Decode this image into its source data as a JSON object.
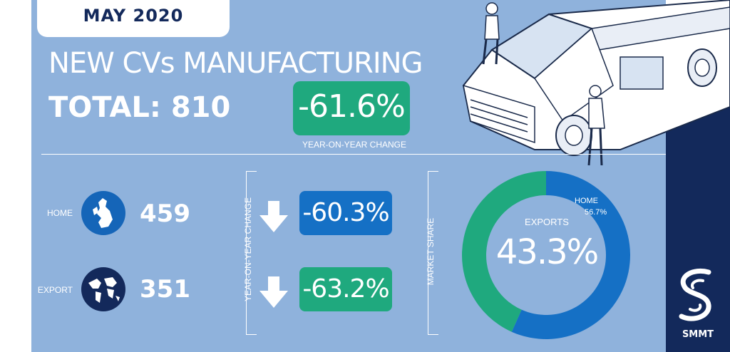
{
  "header": {
    "date": "MAY 2020",
    "title": "NEW CVs MANUFACTURING",
    "total": "TOTAL: 810",
    "total_change": "-61.6%",
    "total_change_caption": "YEAR-ON-YEAR CHANGE"
  },
  "rows": [
    {
      "label": "HOME",
      "value": "459",
      "change": "-60.3%",
      "icon": "uk-map-icon",
      "direction": "down"
    },
    {
      "label": "EXPORT",
      "value": "351",
      "change": "-63.2%",
      "icon": "world-globe-icon",
      "direction": "down"
    }
  ],
  "yoy_vertical_label": "YEAR-ON-YEAR CHANGE",
  "market_share": {
    "vertical_label": "MARKET SHARE",
    "exports_label": "EXPORTS",
    "exports_value": "43.3%",
    "home_label": "HOME",
    "home_value": "56.7%",
    "exports_fraction": 0.433,
    "home_fraction": 0.567
  },
  "brand": {
    "name": "SMMT"
  },
  "colors": {
    "panel": "#8fb2dc",
    "navy": "#13295b",
    "green": "#1fa97e",
    "blue": "#1570c5"
  }
}
